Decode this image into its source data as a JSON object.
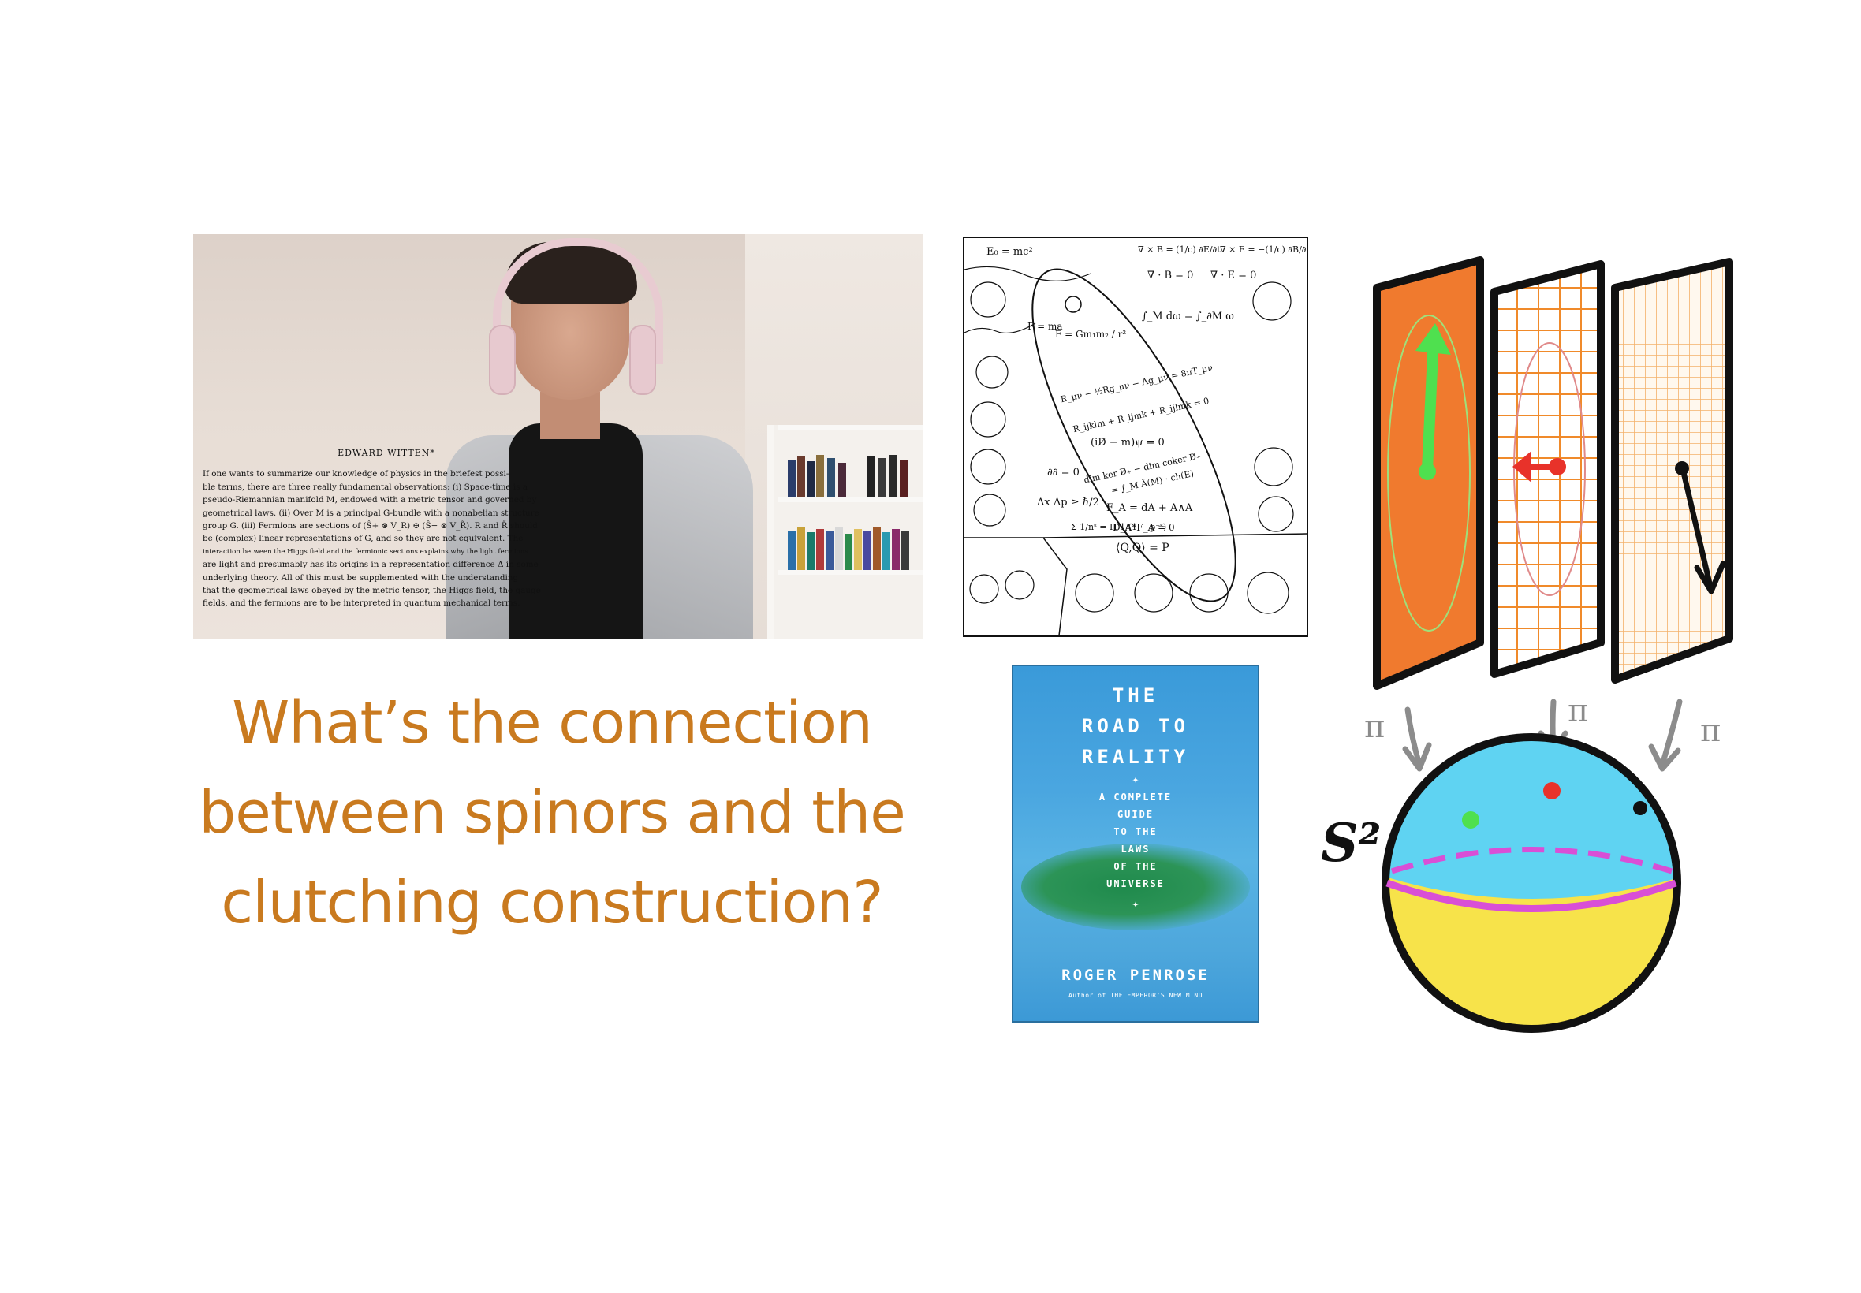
{
  "headline": {
    "line1": "What’s the connection",
    "line2": "between spinors and the",
    "line3": "clutching construction?"
  },
  "photo": {
    "quote_author": "EDWARD WITTEN*",
    "quote_lines": [
      "If one wants to summarize our knowledge of physics in the briefest possi-",
      "ble terms, there are three really fundamental observations: (i) Space-time is a",
      "pseudo-Riemannian manifold M, endowed with a metric tensor and governed by",
      "geometrical laws. (ii) Over M is a principal G-bundle with a nonabelian structure",
      "group G. (iii) Fermions are sections of (Ŝ+ ⊗ V_R) ⊕ (Ŝ− ⊗ V_R̃). R and R̃ should",
      "be (complex) linear representations of G, and so they are not equivalent. The",
      "interaction between the Higgs field and the fermionic sections explains why the light fermions",
      "are light and presumably has its origins in a representation difference Δ in some",
      "underlying theory. All of this must be supplemented with the understanding",
      "that the geometrical laws obeyed by the metric tensor, the Higgs field, the gauge",
      "fields, and the fermions are to be interpreted in quantum mechanical terms."
    ]
  },
  "equation_sheet": {
    "equations": [
      "E₀ = mc²",
      "∇ × B = (1/c) ∂E/∂t",
      "∇ × E = −(1/c) ∂B/∂t",
      "∇ · B = 0",
      "∇ · E = 0",
      "∫_M dω = ∫_∂M ω",
      "F = Gm₁m₂ / r²",
      "R_μν − ½Rg_μν − Λg_μν = 8πT_μν",
      "R_ijklm + R_ijmk + R_ijlmk = 0",
      "(iD̸ − m)ψ = 0",
      "dim ker D̸₊ − dim coker D̸₊",
      "= ∫_M Â(M) · ch(E)",
      "F_A = dA + A∧A",
      "D_A*F_A = 0",
      "⟨Q,Q⟩ = P",
      "∂∂ = 0",
      "Δx Δp ≥ ℏ/2",
      "Σ 1/nˢ = Π 1/(1 − p⁻ˢ)",
      "F = ma"
    ]
  },
  "book": {
    "title_lines": [
      "THE",
      "ROAD TO",
      "REALITY"
    ],
    "subtitle_lines": [
      "A COMPLETE",
      "GUIDE",
      "TO THE",
      "LAWS",
      "OF THE",
      "UNIVERSE"
    ],
    "author": "ROGER PENROSE",
    "tagline": "Author of THE EMPEROR'S NEW MIND",
    "colors": {
      "background": "#4aa6e0",
      "blob": "#1f8a4c"
    }
  },
  "illustration": {
    "sphere_label": "S²",
    "projection_label": "π",
    "colors": {
      "panel_orange": "#f07a2e",
      "grid_orange": "#f08a2a",
      "grid_light": "#f3b16a",
      "arrow_green": "#4fe04f",
      "arrow_red": "#e8322a",
      "arrow_black": "#111111",
      "sphere_top": "#5fd3f2",
      "sphere_bottom": "#f7e34a",
      "equator": "#d94fd6",
      "pi_arrows": "#8c8c8c"
    }
  }
}
